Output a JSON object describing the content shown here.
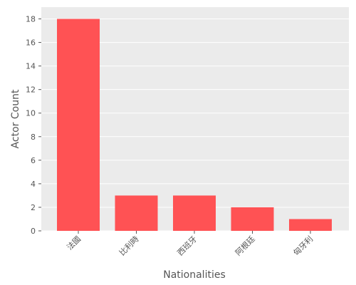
{
  "chart_data": {
    "type": "bar",
    "title": "",
    "xlabel": "Nationalities",
    "ylabel": "Actor Count",
    "categories": [
      "法國",
      "比利時",
      "西班牙",
      "阿根廷",
      "匈牙利"
    ],
    "values": [
      18,
      3,
      3,
      2,
      1
    ],
    "ylim": [
      0,
      19
    ],
    "yticks": [
      0,
      2,
      4,
      6,
      8,
      10,
      12,
      14,
      16,
      18
    ],
    "grid": true,
    "bar_color": "#ff5254",
    "plot_background": "#ebebeb",
    "grid_color": "#ffffff"
  }
}
